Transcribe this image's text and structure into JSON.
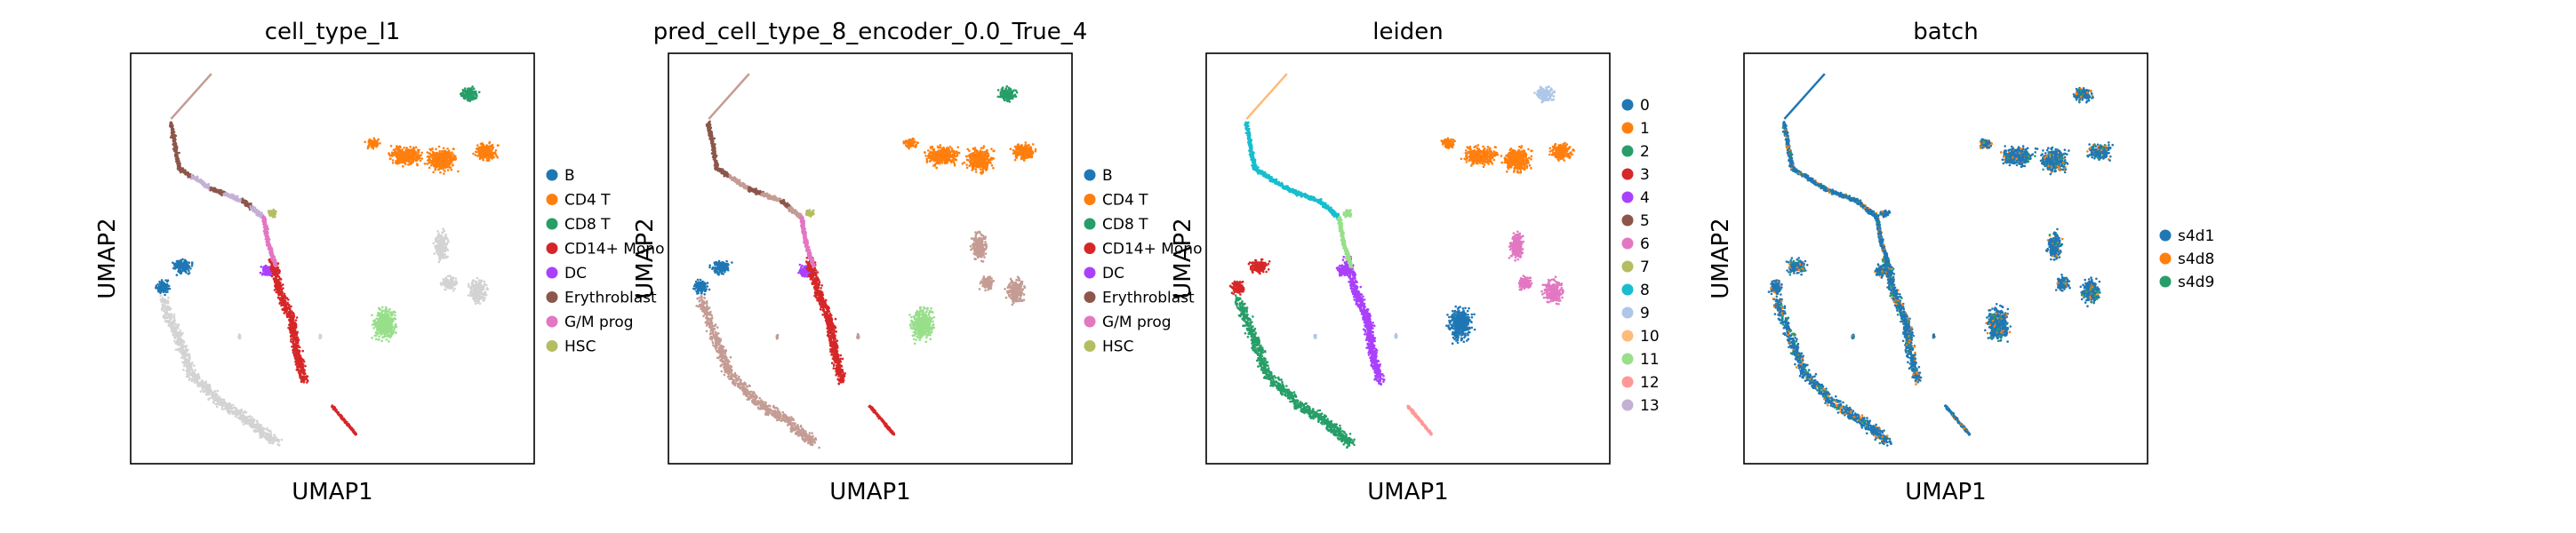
{
  "figure": {
    "xlabel": "UMAP1",
    "ylabel": "UMAP2"
  },
  "chart_data": [
    {
      "type": "scatter",
      "title": "cell_type_l1",
      "xlabel": "UMAP1",
      "ylabel": "UMAP2",
      "grid": false,
      "legend_position": "right",
      "legend": [
        {
          "name": "B",
          "color": "#1f77b4"
        },
        {
          "name": "CD4 T",
          "color": "#ff7f0e"
        },
        {
          "name": "CD8 T",
          "color": "#279e68"
        },
        {
          "name": "CD14+ Mono",
          "color": "#d62728"
        },
        {
          "name": "DC",
          "color": "#aa40fc"
        },
        {
          "name": "Erythroblast",
          "color": "#8c564b"
        },
        {
          "name": "G/M prog",
          "color": "#e377c2"
        },
        {
          "name": "HSC",
          "color": "#b5bd61"
        }
      ],
      "clusters": [
        {
          "label": "CD4 T",
          "color": "#ff7f0e"
        },
        {
          "label": "CD8 T",
          "color": "#279e68"
        },
        {
          "label": "B",
          "color": "#1f77b4"
        },
        {
          "label": "CD14+ Mono",
          "color": "#d62728"
        },
        {
          "label": "DC",
          "color": "#aa40fc"
        },
        {
          "label": "Erythroblast",
          "color": "#8c564b"
        },
        {
          "label": "G/M prog",
          "color": "#e377c2"
        },
        {
          "label": "HSC",
          "color": "#b5bd61"
        },
        {
          "label": "unlabeled",
          "color": "#d3d3d3"
        },
        {
          "label": "light green",
          "color": "#98df8a"
        }
      ]
    },
    {
      "type": "scatter",
      "title": "pred_cell_type_8_encoder_0.0_True_4",
      "xlabel": "UMAP1",
      "ylabel": "UMAP2",
      "grid": false,
      "legend_position": "right",
      "legend": [
        {
          "name": "B",
          "color": "#1f77b4"
        },
        {
          "name": "CD4 T",
          "color": "#ff7f0e"
        },
        {
          "name": "CD8 T",
          "color": "#279e68"
        },
        {
          "name": "CD14+ Mono",
          "color": "#d62728"
        },
        {
          "name": "DC",
          "color": "#aa40fc"
        },
        {
          "name": "Erythroblast",
          "color": "#8c564b"
        },
        {
          "name": "G/M prog",
          "color": "#e377c2"
        },
        {
          "name": "HSC",
          "color": "#b5bd61"
        }
      ]
    },
    {
      "type": "scatter",
      "title": "leiden",
      "xlabel": "UMAP1",
      "ylabel": "UMAP2",
      "grid": false,
      "legend_position": "right",
      "legend": [
        {
          "name": "0",
          "color": "#1f77b4"
        },
        {
          "name": "1",
          "color": "#ff7f0e"
        },
        {
          "name": "2",
          "color": "#279e68"
        },
        {
          "name": "3",
          "color": "#d62728"
        },
        {
          "name": "4",
          "color": "#aa40fc"
        },
        {
          "name": "5",
          "color": "#8c564b"
        },
        {
          "name": "6",
          "color": "#e377c2"
        },
        {
          "name": "7",
          "color": "#b5bd61"
        },
        {
          "name": "8",
          "color": "#17becf"
        },
        {
          "name": "9",
          "color": "#aec7e8"
        },
        {
          "name": "10",
          "color": "#ffbb78"
        },
        {
          "name": "11",
          "color": "#98df8a"
        },
        {
          "name": "12",
          "color": "#ff9896"
        },
        {
          "name": "13",
          "color": "#c5b0d5"
        }
      ]
    },
    {
      "type": "scatter",
      "title": "batch",
      "xlabel": "UMAP1",
      "ylabel": "UMAP2",
      "grid": false,
      "legend_position": "right",
      "legend": [
        {
          "name": "s4d1",
          "color": "#1f77b4"
        },
        {
          "name": "s4d8",
          "color": "#ff7f0e"
        },
        {
          "name": "s4d9",
          "color": "#279e68"
        }
      ]
    }
  ]
}
